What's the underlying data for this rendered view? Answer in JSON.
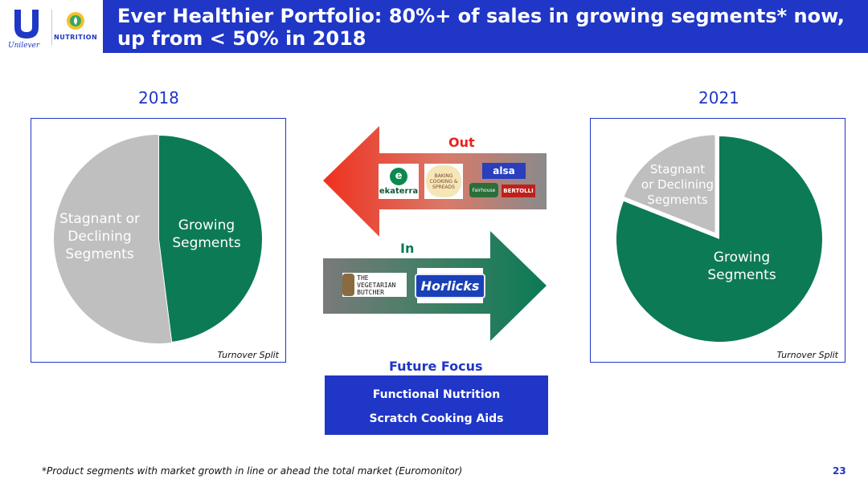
{
  "header": {
    "title": "Ever Healthier Portfolio: 80%+ of sales in growing segments* now, up from < 50% in 2018",
    "logo_unilever": "Unilever",
    "logo_nutrition": "NUTRITION"
  },
  "chart_data": [
    {
      "type": "pie",
      "title": "2018",
      "slices": [
        {
          "label": "Growing Segments",
          "value": 48,
          "color": "#0c7a55"
        },
        {
          "label": "Stagnant or Declining Segments",
          "value": 52,
          "color": "#bfbfbf"
        }
      ],
      "note": "Turnover Split"
    },
    {
      "type": "pie",
      "title": "2021",
      "slices": [
        {
          "label": "Growing Segments",
          "value": 81,
          "color": "#0c7a55"
        },
        {
          "label": "Stagnant or Declining Segments",
          "value": 19,
          "color": "#bfbfbf"
        }
      ],
      "note": "Turnover Split"
    }
  ],
  "flows": {
    "out_label": "Out",
    "in_label": "In",
    "out_brands": [
      "ekaterra",
      "BAKING COOKING & SPREADS",
      "alsa",
      "Fairhouse",
      "BERTOLLI"
    ],
    "in_brands": [
      "THE VEGETARIAN BUTCHER",
      "Horlicks"
    ],
    "out_color": "#e8231e",
    "in_color": "#0c7a55"
  },
  "future_focus": {
    "title": "Future Focus",
    "items": [
      "Functional Nutrition",
      "Scratch Cooking Aids"
    ]
  },
  "footnote": "*Product segments with market growth in line or ahead the total market (Euromonitor)",
  "page_number": "23",
  "colors": {
    "brand_blue": "#1f36c7",
    "growing": "#0c7a55",
    "stagnant": "#bfbfbf"
  }
}
